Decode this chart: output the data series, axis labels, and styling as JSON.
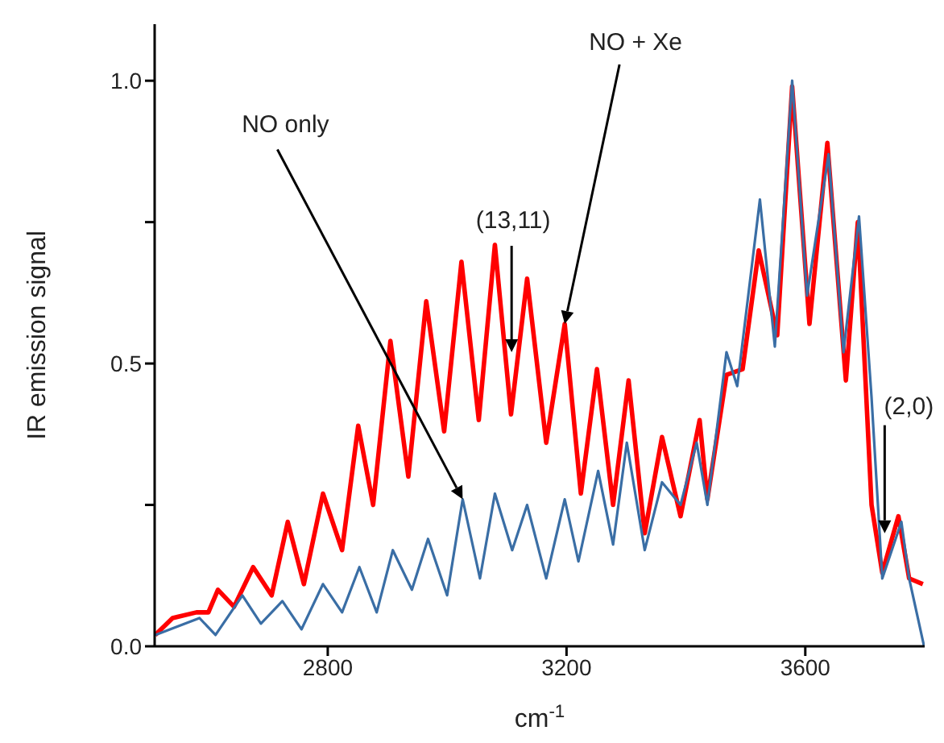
{
  "chart_data": {
    "type": "line",
    "xlabel": "cm$^{-1}$",
    "ylabel": "IR emission signal",
    "xlim": [
      2510,
      3800
    ],
    "xticks": [
      2800,
      3200,
      3600
    ],
    "ylim": [
      0,
      1.1
    ],
    "yticks": [
      {
        "value": 0,
        "label": "0.0"
      },
      {
        "value": 0.25,
        "label": null
      },
      {
        "value": 0.5,
        "label": "0.5"
      },
      {
        "value": 0.75,
        "label": null
      },
      {
        "value": 1,
        "label": "1.0"
      }
    ],
    "grid": false,
    "marker": "none",
    "line_style": "solid",
    "series": [
      {
        "color": "#ff0000",
        "x": [
          2511,
          2540,
          2580,
          2600,
          2616,
          2643,
          2675,
          2706,
          2733,
          2760,
          2792,
          2824,
          2851,
          2876,
          2905,
          2935,
          2965,
          2995,
          3024,
          3053,
          3080,
          3107,
          3134,
          3166,
          3197,
          3224,
          3251,
          3278,
          3304,
          3331,
          3360,
          3391,
          3423,
          3436,
          3468,
          3495,
          3522,
          3553,
          3578,
          3607,
          3637,
          3668,
          3688,
          3711,
          3729,
          3756,
          3774,
          3797
        ],
        "values": [
          0.02,
          0.05,
          0.06,
          0.06,
          0.1,
          0.07,
          0.14,
          0.09,
          0.22,
          0.11,
          0.27,
          0.17,
          0.39,
          0.25,
          0.54,
          0.3,
          0.61,
          0.38,
          0.68,
          0.4,
          0.71,
          0.41,
          0.65,
          0.36,
          0.57,
          0.27,
          0.49,
          0.25,
          0.47,
          0.2,
          0.37,
          0.23,
          0.4,
          0.26,
          0.48,
          0.49,
          0.7,
          0.55,
          0.99,
          0.57,
          0.89,
          0.47,
          0.75,
          0.25,
          0.13,
          0.23,
          0.12,
          0.11
        ]
      },
      {
        "color": "#3a6ea5",
        "x": [
          2511,
          2585,
          2612,
          2657,
          2688,
          2724,
          2756,
          2792,
          2824,
          2853,
          2882,
          2909,
          2941,
          2968,
          3000,
          3026,
          3055,
          3080,
          3109,
          3134,
          3166,
          3197,
          3220,
          3253,
          3278,
          3301,
          3331,
          3360,
          3391,
          3418,
          3436,
          3468,
          3486,
          3524,
          3549,
          3578,
          3603,
          3639,
          3664,
          3690,
          3711,
          3729,
          3761,
          3774,
          3799
        ],
        "values": [
          0.02,
          0.05,
          0.02,
          0.09,
          0.04,
          0.08,
          0.03,
          0.11,
          0.06,
          0.14,
          0.06,
          0.17,
          0.1,
          0.19,
          0.09,
          0.26,
          0.12,
          0.27,
          0.17,
          0.25,
          0.12,
          0.26,
          0.15,
          0.31,
          0.18,
          0.36,
          0.17,
          0.29,
          0.25,
          0.36,
          0.25,
          0.52,
          0.46,
          0.79,
          0.53,
          1.0,
          0.62,
          0.87,
          0.52,
          0.76,
          0.44,
          0.12,
          0.22,
          0.12,
          0
        ]
      }
    ],
    "annotations": [
      {
        "text": "NO only",
        "x": 3026,
        "y": 0.26
      },
      {
        "text": "NO + Xe",
        "x": 3197,
        "y": 0.57
      },
      {
        "text": "(13,11)",
        "x": 3108,
        "y": 0.52
      },
      {
        "text": "(2,0)",
        "x": 3733,
        "y": 0.2
      }
    ]
  }
}
